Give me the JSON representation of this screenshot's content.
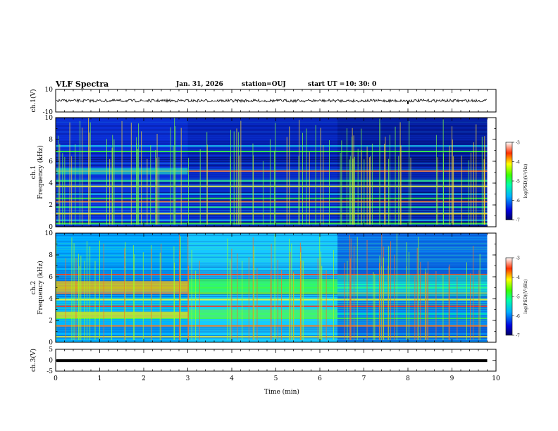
{
  "header": {
    "title": "VLF Spectra",
    "date": "Jan. 31, 2026",
    "station": "station=OUJ",
    "start_label": "start  UT =",
    "start_time": "10: 30: 0"
  },
  "chart_data": {
    "type": "heatmap",
    "title": "VLF Spectra",
    "xlabel": "Time (min)",
    "xlim": [
      0,
      10
    ],
    "x_ticks": [
      "0",
      "1",
      "2",
      "3",
      "4",
      "5",
      "6",
      "7",
      "8",
      "9",
      "10"
    ],
    "data_end_min": 9.8,
    "panels": [
      {
        "id": "ch1_waveform",
        "type": "line",
        "ylabel": "ch.1(V)",
        "ylim": [
          -10,
          10
        ],
        "y_ticks": [
          "10",
          "-10"
        ],
        "baseline_value": 0,
        "spike": {
          "t_min": 8.0,
          "min_value": -3.0
        }
      },
      {
        "id": "ch1_spectrogram",
        "type": "heatmap",
        "ylabel_top": "ch.1",
        "ylabel": "Frequency (kHz)",
        "ylim": [
          0,
          10
        ],
        "y_ticks": [
          "0",
          "2",
          "4",
          "6",
          "8",
          "10"
        ],
        "colorbar": {
          "label": "log(PSD)(V²/Hz)",
          "range": [
            -7,
            -3
          ],
          "ticks": [
            "-3",
            "-4",
            "-5",
            "-6",
            "-7"
          ]
        },
        "segments_min": [
          3.0,
          6.4
        ],
        "bands_khz": [
          0.3,
          0.6,
          1.2,
          1.8,
          2.3,
          2.6,
          3.0,
          3.7,
          4.2,
          5.1,
          6.9,
          7.4
        ]
      },
      {
        "id": "ch2_spectrogram",
        "type": "heatmap",
        "ylabel_top": "ch.2",
        "ylabel": "Frequency (kHz)",
        "ylim": [
          0,
          10
        ],
        "y_ticks": [
          "0",
          "2",
          "4",
          "6",
          "8",
          "10"
        ],
        "colorbar": {
          "label": "log(PSD)(V²/Hz)",
          "range": [
            -7,
            -3
          ],
          "ticks": [
            "-3",
            "-4",
            "-5",
            "-6",
            "-7"
          ]
        },
        "segments_min": [
          3.0,
          6.4
        ],
        "bands_khz": [
          0.5,
          1.5,
          2.2,
          2.6,
          3.3,
          3.9,
          4.5,
          5.0,
          5.3,
          6.2
        ]
      },
      {
        "id": "ch3_waveform",
        "type": "line",
        "ylabel": "ch.3(V)",
        "ylim": [
          -5,
          5
        ],
        "y_ticks": [
          "5",
          "0",
          "-5"
        ],
        "baseline_value": -0.2
      }
    ]
  }
}
